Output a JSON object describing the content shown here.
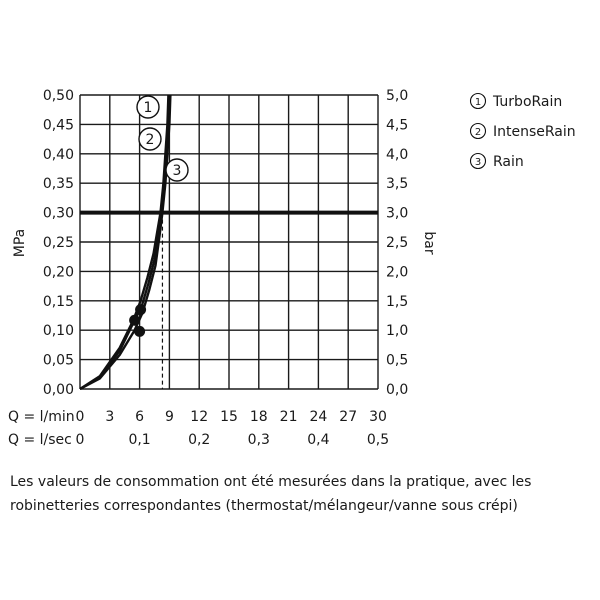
{
  "chart_data": {
    "type": "line",
    "ylabel_left": "MPa",
    "ylabel_right": "bar",
    "xlabel_rows": [
      "Q = l/min",
      "Q = l/sec"
    ],
    "x_ticks_lmin": [
      "0",
      "3",
      "6",
      "9",
      "12",
      "15",
      "18",
      "21",
      "24",
      "27",
      "30"
    ],
    "x_ticks_lsec": [
      {
        "value": 0,
        "label": "0"
      },
      {
        "value": 6,
        "label": "0,1"
      },
      {
        "value": 12,
        "label": "0,2"
      },
      {
        "value": 18,
        "label": "0,3"
      },
      {
        "value": 24,
        "label": "0,4"
      },
      {
        "value": 30,
        "label": "0,5"
      }
    ],
    "y_ticks_mpa": [
      "0,00",
      "0,05",
      "0,10",
      "0,15",
      "0,20",
      "0,25",
      "0,30",
      "0,35",
      "0,40",
      "0,45",
      "0,50"
    ],
    "y_ticks_bar": [
      "0,0",
      "0,5",
      "1,0",
      "1,5",
      "2,0",
      "2,5",
      "3,0",
      "3,5",
      "4,0",
      "4,5",
      "5,0"
    ],
    "xlim": [
      0,
      30
    ],
    "ylim": [
      0,
      0.5
    ],
    "grid": true,
    "reference_line_y": 0.3,
    "reference_line_x": 8.3,
    "series": [
      {
        "name": "TurboRain",
        "marker": "1",
        "points": [
          [
            0,
            0
          ],
          [
            2,
            0.018
          ],
          [
            4,
            0.058
          ],
          [
            5.5,
            0.1
          ],
          [
            6.3,
            0.13
          ],
          [
            7,
            0.17
          ],
          [
            7.6,
            0.21
          ],
          [
            8.0,
            0.26
          ],
          [
            8.3,
            0.3
          ],
          [
            8.6,
            0.35
          ],
          [
            8.8,
            0.4
          ],
          [
            9.0,
            0.45
          ],
          [
            9.1,
            0.5
          ]
        ]
      },
      {
        "name": "IntenseRain",
        "marker": "2",
        "points": [
          [
            0,
            0
          ],
          [
            2,
            0.02
          ],
          [
            4,
            0.065
          ],
          [
            5.5,
            0.117
          ],
          [
            6.2,
            0.14
          ],
          [
            6.9,
            0.18
          ],
          [
            7.5,
            0.22
          ],
          [
            7.9,
            0.26
          ],
          [
            8.2,
            0.3
          ],
          [
            8.5,
            0.35
          ],
          [
            8.7,
            0.4
          ],
          [
            8.9,
            0.45
          ],
          [
            9.0,
            0.5
          ]
        ]
      },
      {
        "name": "Rain",
        "marker": "3",
        "points": [
          [
            0,
            0
          ],
          [
            2,
            0.022
          ],
          [
            4,
            0.07
          ],
          [
            5.4,
            0.118
          ],
          [
            6.1,
            0.15
          ],
          [
            6.8,
            0.19
          ],
          [
            7.4,
            0.23
          ],
          [
            7.8,
            0.27
          ],
          [
            8.1,
            0.3
          ],
          [
            8.4,
            0.35
          ],
          [
            8.6,
            0.4
          ],
          [
            8.8,
            0.45
          ],
          [
            8.9,
            0.5
          ]
        ]
      }
    ],
    "data_markers": [
      [
        6.1,
        0.135
      ],
      [
        5.5,
        0.117
      ],
      [
        6.0,
        0.098
      ]
    ],
    "legend": [
      {
        "symbol": "1",
        "label": "TurboRain"
      },
      {
        "symbol": "2",
        "label": "IntenseRain"
      },
      {
        "symbol": "3",
        "label": "Rain"
      }
    ],
    "legend_position": "top-right",
    "curve_labels": [
      "1",
      "2",
      "3"
    ]
  },
  "caption": "Les valeurs de consommation ont été mesurées dans la pratique, avec les robinetteries correspondantes (thermostat/mélangeur/vanne sous crépi)"
}
